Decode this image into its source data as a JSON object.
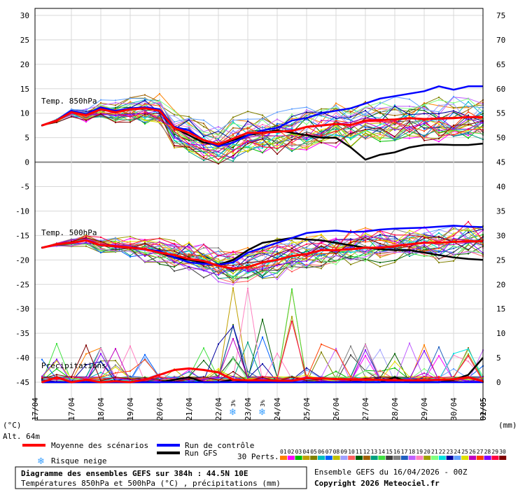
{
  "chart_data": {
    "type": "line",
    "x_dates": [
      "17/04",
      "18/04",
      "19/04",
      "20/04",
      "21/04",
      "22/04",
      "23/04",
      "24/04",
      "25/04",
      "26/04",
      "27/04",
      "28/04",
      "29/04",
      "30/04",
      "01/05",
      "02/05"
    ],
    "x_first_label": "17/04",
    "left_axis": {
      "label": "(°C)",
      "ylim": [
        -45,
        30
      ],
      "ticks": [
        30,
        25,
        20,
        15,
        10,
        5,
        0,
        -5,
        -10,
        -15,
        -20,
        -25,
        -30,
        -35,
        -40,
        -45
      ]
    },
    "right_axis": {
      "label": "(mm)",
      "ylim": [
        0,
        75
      ],
      "ticks": [
        75,
        70,
        65,
        60,
        55,
        50,
        45,
        40,
        35,
        30,
        25,
        20,
        15,
        10,
        5,
        0
      ]
    },
    "panel_labels": {
      "t850": "Temp. 850hPa",
      "t500": "Temp. 500hPa",
      "precip": "Précipitations"
    },
    "altitude_label": "Alt. 64m",
    "snow_markers": [
      {
        "x": 6.5,
        "text": "3%"
      },
      {
        "x": 7.5,
        "text": "3%"
      }
    ],
    "series": [
      {
        "name": "Moyenne des scénarios",
        "color": "#ff0000",
        "t850": [
          7.5,
          8.5,
          10.2,
          9.6,
          10.8,
          10.2,
          10.8,
          11.0,
          10.5,
          7.0,
          6.0,
          4.5,
          3.6,
          4.8,
          6.0,
          6.0,
          6.2,
          6.4,
          7.2,
          7.5,
          7.8,
          7.6,
          8.5,
          8.6,
          8.7,
          9.0,
          8.8,
          8.9,
          9.0,
          9.2,
          9.2
        ],
        "t500": [
          -17.5,
          -16.8,
          -16.5,
          -16.0,
          -17.0,
          -17.2,
          -17.5,
          -17.8,
          -18.5,
          -19.0,
          -19.8,
          -20.2,
          -21.2,
          -21.8,
          -21.5,
          -20.5,
          -20.0,
          -19.2,
          -18.8,
          -18.0,
          -18.0,
          -17.8,
          -17.5,
          -17.5,
          -17.2,
          -16.8,
          -16.5,
          -16.5,
          -16.3,
          -16.2,
          -16.2
        ],
        "precip": [
          0,
          1,
          0,
          0.5,
          0,
          0.2,
          0,
          0.5,
          1.5,
          2.5,
          2.8,
          2.5,
          2.0,
          0.5,
          0.4,
          0.4,
          0.3,
          0.3,
          0.8,
          0.8,
          0.6,
          0.6,
          0.5,
          0.5,
          0.4,
          0.4,
          0.4,
          0.5,
          0.6,
          1.0,
          0.2
        ]
      },
      {
        "name": "Run de contrôle",
        "color": "#0000ff",
        "t850": [
          7.5,
          8.6,
          10.5,
          9.8,
          11.2,
          10.5,
          11.0,
          11.2,
          10.8,
          7.2,
          6.5,
          4.5,
          3.2,
          4.0,
          5.5,
          6.5,
          7.0,
          8.5,
          9.0,
          10.0,
          10.5,
          11.0,
          12.0,
          13.0,
          13.5,
          14.0,
          14.5,
          15.5,
          14.8,
          15.5,
          15.5
        ],
        "t500": [
          -17.5,
          -16.8,
          -16.5,
          -16.0,
          -17.0,
          -17.2,
          -17.5,
          -17.8,
          -18.2,
          -19.5,
          -20.5,
          -20.8,
          -21.0,
          -20.5,
          -18.5,
          -17.5,
          -16.5,
          -15.5,
          -14.5,
          -14.2,
          -14.0,
          -14.3,
          -14.2,
          -13.8,
          -13.6,
          -13.5,
          -13.4,
          -13.2,
          -13.0,
          -13.2,
          -13.3
        ],
        "precip": [
          0,
          0,
          0,
          0,
          0,
          0,
          0,
          0,
          0,
          0,
          0,
          0,
          0,
          0,
          0,
          0,
          0,
          0,
          0,
          0,
          0,
          0,
          0,
          0,
          0,
          0,
          0,
          0,
          0,
          0,
          0
        ]
      },
      {
        "name": "Run GFS",
        "color": "#000000",
        "t850": [
          7.5,
          8.5,
          10.3,
          9.8,
          11.0,
          10.2,
          10.8,
          11.0,
          10.5,
          7.0,
          5.5,
          4.0,
          3.5,
          4.5,
          5.5,
          6.0,
          6.5,
          6.0,
          5.5,
          5.0,
          5.0,
          3.0,
          0.5,
          1.5,
          2.0,
          3.0,
          3.5,
          3.6,
          3.5,
          3.5,
          3.8
        ],
        "t500": [
          -17.5,
          -16.8,
          -16.5,
          -16.0,
          -17.0,
          -17.2,
          -17.5,
          -17.8,
          -18.5,
          -19.5,
          -20.0,
          -20.5,
          -21.0,
          -20.0,
          -18.0,
          -16.5,
          -16.0,
          -15.5,
          -15.8,
          -16.0,
          -16.5,
          -17.0,
          -17.5,
          -17.8,
          -18.0,
          -18.0,
          -18.5,
          -19.0,
          -19.5,
          -19.8,
          -20.0
        ],
        "precip": [
          0,
          0,
          0,
          0,
          0,
          0,
          0,
          0,
          0,
          0.5,
          1.0,
          0,
          0,
          0.5,
          0,
          0,
          0,
          0,
          0,
          0,
          0,
          0,
          0,
          0,
          1.0,
          0,
          0,
          0,
          0.5,
          1.5,
          5.0
        ]
      }
    ],
    "legend": {
      "mean": "Moyenne des scénarios",
      "control": "Run de contrôle",
      "gfs": "Run GFS",
      "snow": "Risque neige",
      "perts": "30 Perts.",
      "pert_numbers": [
        "01",
        "02",
        "03",
        "04",
        "05",
        "06",
        "07",
        "08",
        "09",
        "10",
        "11",
        "12",
        "13",
        "14",
        "15",
        "16",
        "17",
        "18",
        "19",
        "20",
        "21",
        "22",
        "23",
        "24",
        "25",
        "26",
        "27",
        "28",
        "29",
        "30"
      ],
      "pert_colors": [
        "#ff8000",
        "#ff00ff",
        "#00c000",
        "#c0a000",
        "#808000",
        "#00c0c0",
        "#0060ff",
        "#c0c000",
        "#a0a0ff",
        "#ff6060",
        "#006000",
        "#a06000",
        "#00a080",
        "#40e040",
        "#404040",
        "#808080",
        "#2060c0",
        "#c060ff",
        "#ff80c0",
        "#a0a000",
        "#80ff80",
        "#00e0e0",
        "#0000a0",
        "#60a0ff",
        "#e0e000",
        "#c000c0",
        "#ff4000",
        "#8000ff",
        "#ff0040",
        "#800000"
      ]
    },
    "footer": {
      "title": "Diagramme des ensembles GEFS sur 384h : 44.5N 10E",
      "subtitle": "Températures 850hPa et 500hPa (°C) , précipitations (mm)",
      "run": "Ensemble GEFS du 16/04/2026 - 00Z",
      "copyright": "Copyright 2026 Meteociel.fr"
    }
  }
}
